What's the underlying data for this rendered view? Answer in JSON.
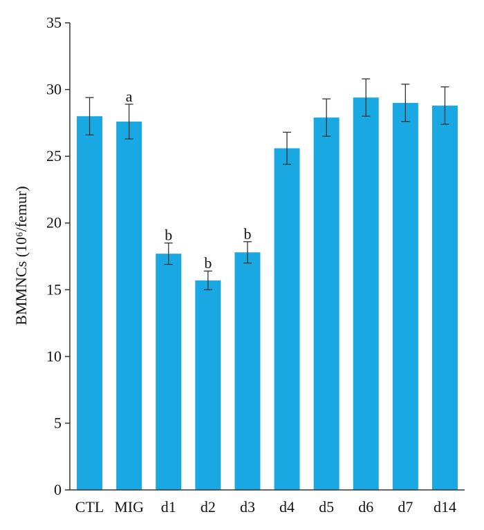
{
  "chart_data": {
    "type": "bar",
    "categories": [
      "CTL",
      "MIG",
      "d1",
      "d2",
      "d3",
      "d4",
      "d5",
      "d6",
      "d7",
      "d14"
    ],
    "values": [
      28.0,
      27.6,
      17.7,
      15.7,
      17.8,
      25.6,
      27.9,
      29.4,
      29.0,
      28.8
    ],
    "errors": [
      1.4,
      1.3,
      0.8,
      0.7,
      0.8,
      1.2,
      1.4,
      1.4,
      1.4,
      1.4
    ],
    "significance": [
      "",
      "a",
      "b",
      "b",
      "b",
      "",
      "",
      "",
      "",
      ""
    ],
    "ylabel": "BMMNCs (10⁶/femur)",
    "ylim": [
      0,
      35
    ],
    "yticks": [
      0,
      5,
      10,
      15,
      20,
      25,
      30,
      35
    ],
    "grid": false,
    "bar_color": "#1aa8e3"
  }
}
